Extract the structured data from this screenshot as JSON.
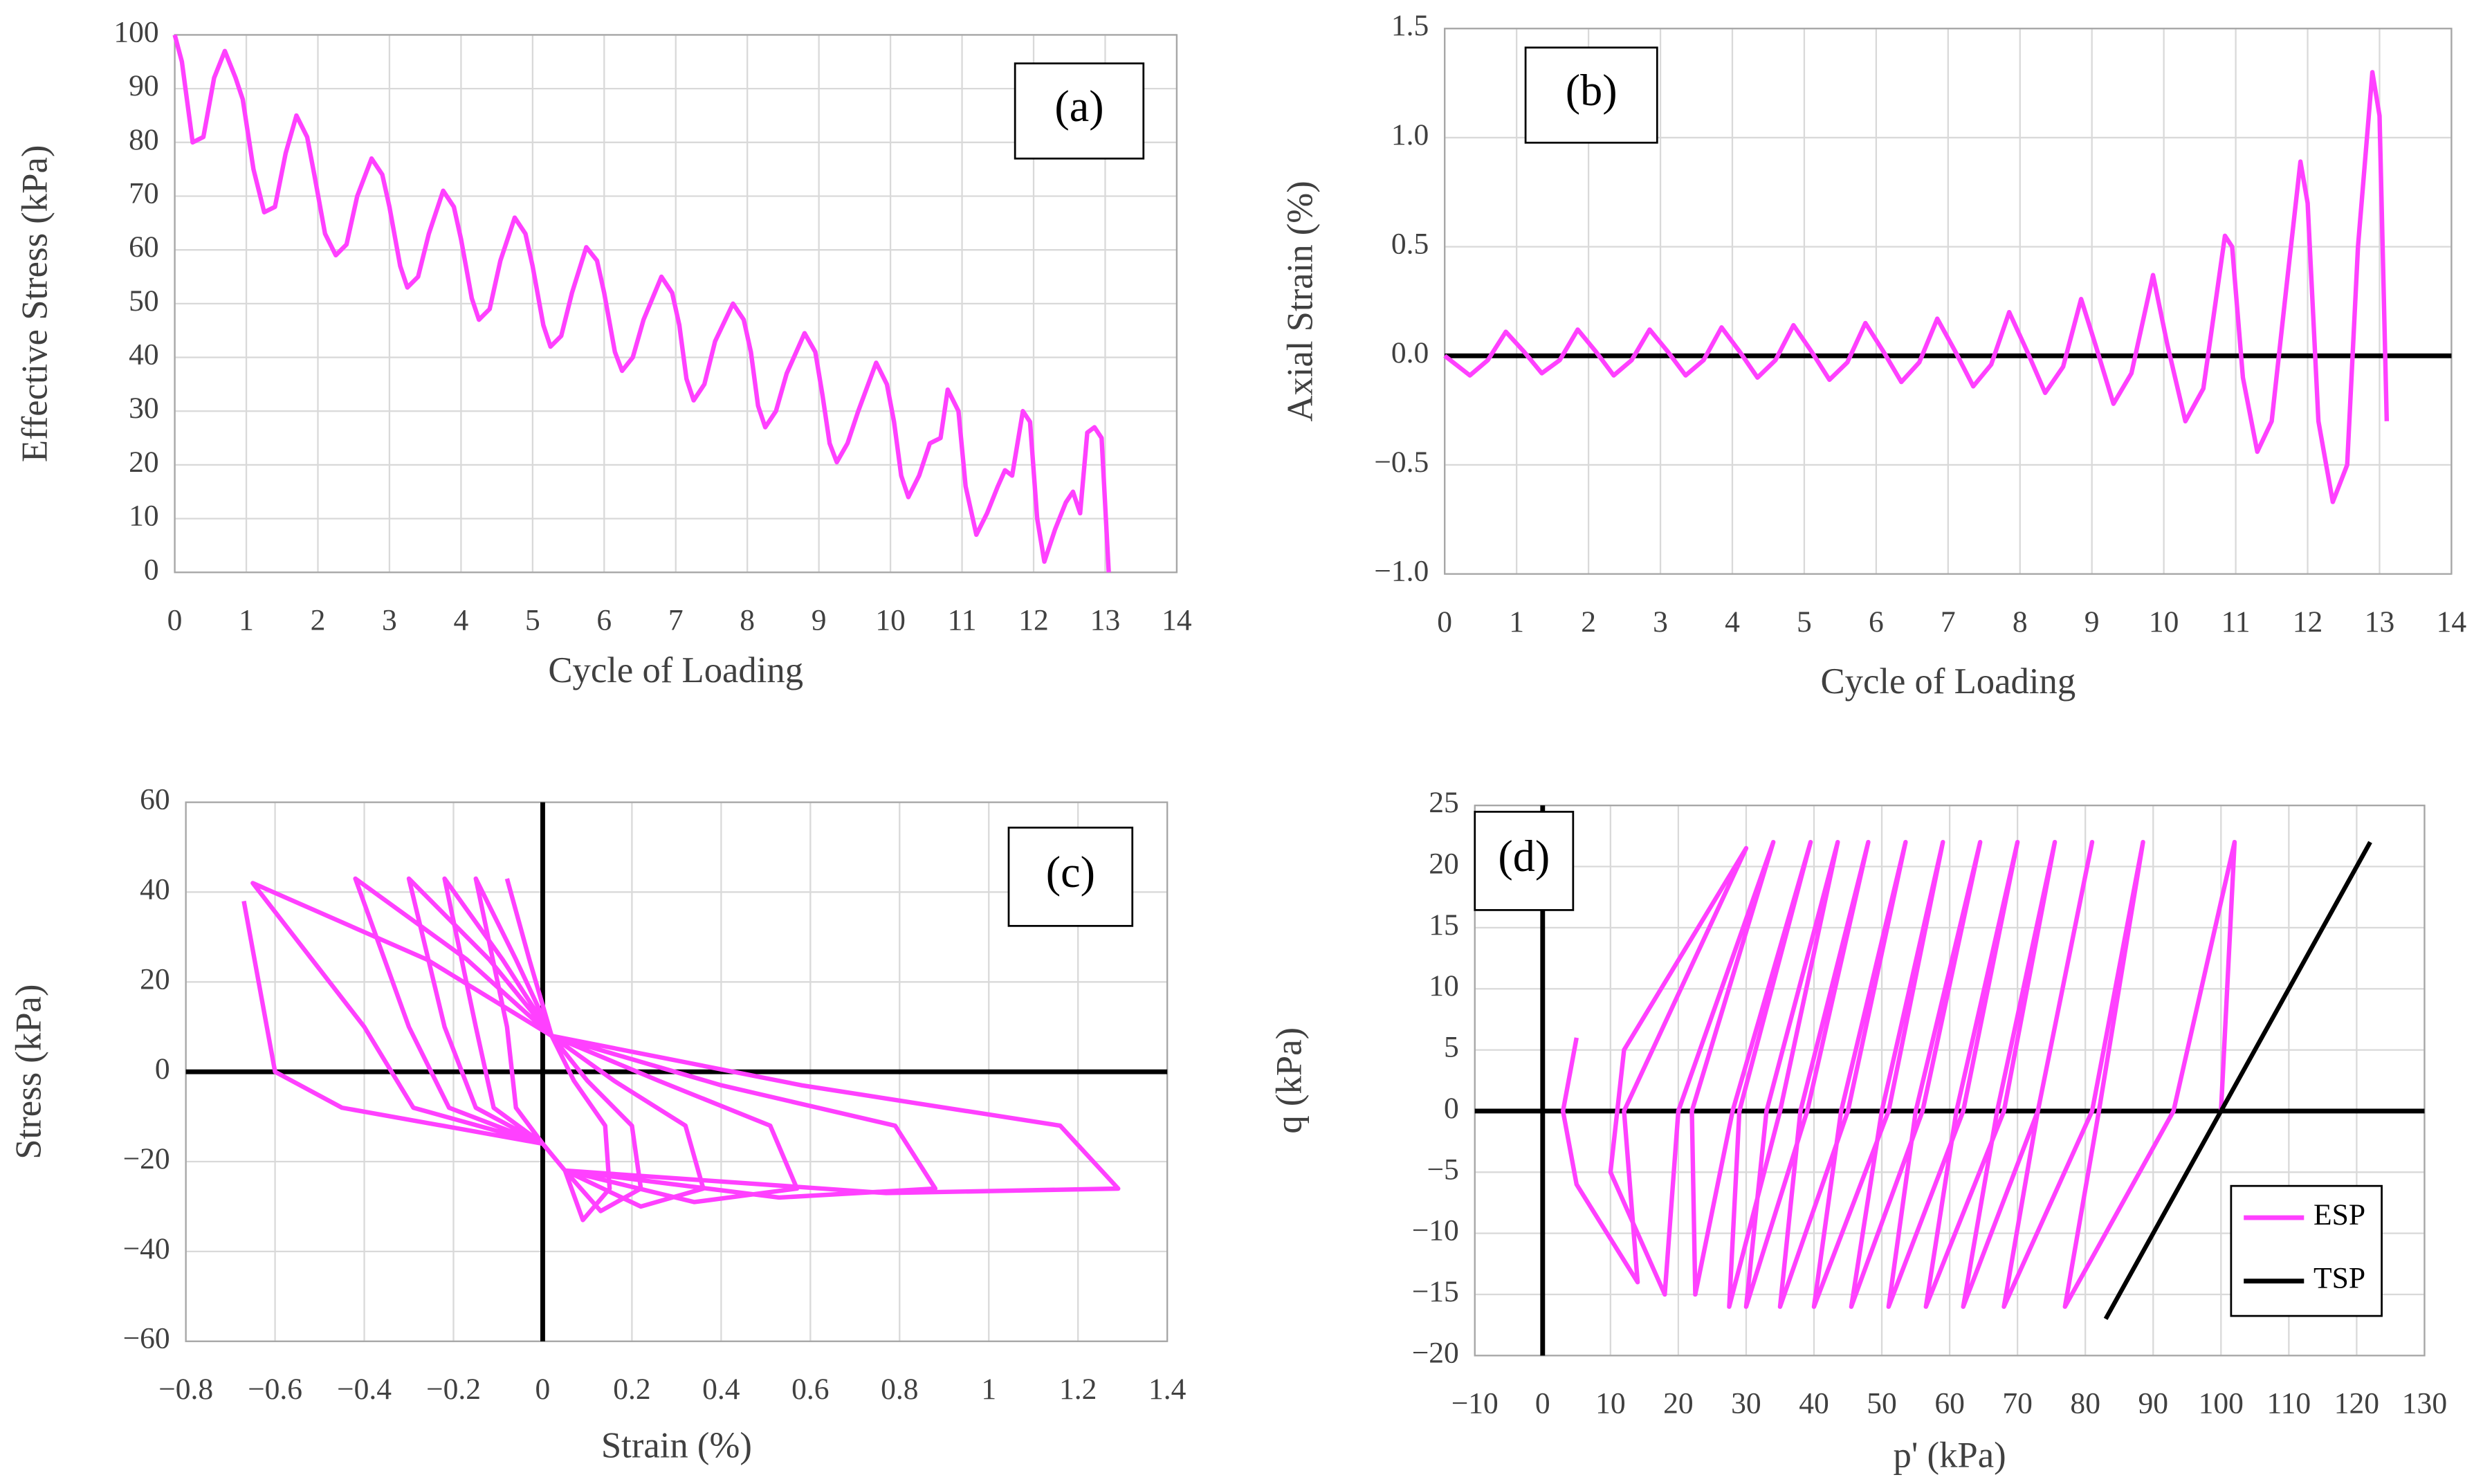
{
  "chart_data": [
    {
      "type": "line",
      "xlabel": "Cycle of Loading",
      "ylabel": "Effective Stress (kPa)",
      "annotation": "(a)",
      "grid": true,
      "zero_lines": false,
      "xlim": [
        0,
        14
      ],
      "xticks": [
        0,
        1,
        2,
        3,
        4,
        5,
        6,
        7,
        8,
        9,
        10,
        11,
        12,
        13,
        14
      ],
      "ylim": [
        0,
        100
      ],
      "yticks": [
        0,
        10,
        20,
        30,
        40,
        50,
        60,
        70,
        80,
        90,
        100
      ],
      "series": [
        {
          "color": "#ff40ff",
          "x": [
            0,
            0.1,
            0.25,
            0.4,
            0.55,
            0.7,
            0.85,
            0.95,
            1.1,
            1.25,
            1.4,
            1.55,
            1.7,
            1.85,
            1.95,
            2.1,
            2.25,
            2.4,
            2.55,
            2.75,
            2.9,
            3.0,
            3.15,
            3.25,
            3.4,
            3.55,
            3.75,
            3.9,
            4.0,
            4.15,
            4.25,
            4.4,
            4.55,
            4.75,
            4.9,
            5.0,
            5.15,
            5.25,
            5.4,
            5.55,
            5.75,
            5.9,
            6.0,
            6.15,
            6.25,
            6.4,
            6.55,
            6.8,
            6.95,
            7.05,
            7.15,
            7.25,
            7.4,
            7.55,
            7.8,
            7.95,
            8.05,
            8.15,
            8.25,
            8.4,
            8.55,
            8.8,
            8.95,
            9.05,
            9.15,
            9.25,
            9.4,
            9.55,
            9.8,
            9.95,
            10.05,
            10.15,
            10.25,
            10.4,
            10.55,
            10.7,
            10.8,
            10.95,
            11.05,
            11.2,
            11.35,
            11.5,
            11.6,
            11.7,
            11.85,
            11.95,
            12.05,
            12.15,
            12.3,
            12.45,
            12.55,
            12.65,
            12.75,
            12.85,
            12.95,
            13.05
          ],
          "values": [
            100,
            95,
            80,
            81,
            92,
            97,
            92,
            88,
            75,
            67,
            68,
            78,
            85,
            81,
            74,
            63,
            59,
            61,
            70,
            77,
            74,
            68,
            57,
            53,
            55,
            63,
            71,
            68,
            62,
            51,
            47,
            49,
            58,
            66,
            63,
            57,
            46,
            42,
            44,
            52,
            60.5,
            58,
            52,
            41,
            37.5,
            40,
            47,
            55,
            52,
            46,
            36,
            32,
            35,
            43,
            50,
            47,
            41,
            31,
            27,
            30,
            37,
            44.5,
            41,
            33,
            24,
            20.5,
            24,
            30,
            39,
            35,
            28,
            18,
            14,
            18,
            24,
            25,
            34,
            30,
            16,
            7,
            11,
            16,
            19,
            18,
            30,
            28,
            10,
            2,
            8,
            13,
            15,
            11,
            26,
            27,
            25,
            0
          ]
        }
      ]
    },
    {
      "type": "line",
      "xlabel": "Cycle of Loading",
      "ylabel": "Axial Strain (%)",
      "annotation": "(b)",
      "grid": true,
      "zero_lines": true,
      "xlim": [
        0,
        14
      ],
      "xticks": [
        0,
        1,
        2,
        3,
        4,
        5,
        6,
        7,
        8,
        9,
        10,
        11,
        12,
        13,
        14
      ],
      "ylim": [
        -1.0,
        1.5
      ],
      "yticks": [
        {
          "value": -1.0,
          "label": "−1.0"
        },
        {
          "value": -0.5,
          "label": "−0.5"
        },
        {
          "value": 0,
          "label": "0.0"
        },
        0.5,
        {
          "value": 1.0,
          "label": "1.0"
        },
        1.5
      ],
      "series": [
        {
          "color": "#ff40ff",
          "x": [
            0,
            0.35,
            0.6,
            0.85,
            1.1,
            1.35,
            1.6,
            1.85,
            2.1,
            2.35,
            2.6,
            2.85,
            3.1,
            3.35,
            3.6,
            3.85,
            4.1,
            4.35,
            4.6,
            4.85,
            5.1,
            5.35,
            5.6,
            5.85,
            6.1,
            6.35,
            6.6,
            6.85,
            7.1,
            7.35,
            7.6,
            7.85,
            8.1,
            8.35,
            8.6,
            8.85,
            9.05,
            9.3,
            9.55,
            9.85,
            10.05,
            10.3,
            10.55,
            10.85,
            10.95,
            11.1,
            11.3,
            11.5,
            11.7,
            11.9,
            12.0,
            12.15,
            12.35,
            12.55,
            12.7,
            12.9,
            13.0,
            13.1
          ],
          "values": [
            0,
            -0.09,
            -0.02,
            0.11,
            0.02,
            -0.08,
            -0.02,
            0.12,
            0.02,
            -0.09,
            -0.02,
            0.12,
            0.02,
            -0.09,
            -0.02,
            0.13,
            0.02,
            -0.1,
            -0.02,
            0.14,
            0.02,
            -0.11,
            -0.03,
            0.15,
            0.02,
            -0.12,
            -0.03,
            0.17,
            0.02,
            -0.14,
            -0.04,
            0.2,
            0.02,
            -0.17,
            -0.05,
            0.26,
            0.05,
            -0.22,
            -0.08,
            0.37,
            0.05,
            -0.3,
            -0.15,
            0.55,
            0.5,
            -0.1,
            -0.44,
            -0.3,
            0.3,
            0.89,
            0.7,
            -0.3,
            -0.67,
            -0.5,
            0.5,
            1.3,
            1.1,
            -0.3
          ]
        }
      ]
    },
    {
      "type": "line",
      "xlabel": "Strain (%)",
      "ylabel": "Stress (kPa)",
      "annotation": "(c)",
      "grid": true,
      "zero_lines": true,
      "xlim": [
        -0.8,
        1.4
      ],
      "xticks": [
        {
          "value": -0.8,
          "label": "−0.8"
        },
        {
          "value": -0.6,
          "label": "−0.6"
        },
        {
          "value": -0.4,
          "label": "−0.4"
        },
        {
          "value": -0.2,
          "label": "−0.2"
        },
        0,
        0.2,
        0.4,
        0.6,
        0.8,
        1,
        1.2,
        1.4
      ],
      "ylim": [
        -60,
        60
      ],
      "yticks": [
        {
          "value": -60,
          "label": "−60"
        },
        {
          "value": -40,
          "label": "−40"
        },
        {
          "value": -20,
          "label": "−20"
        },
        0,
        20,
        40,
        60
      ],
      "series": [
        {
          "color": "#ff40ff",
          "x": [
            -0.08,
            -0.03,
            0.02,
            0.07,
            0.14,
            0.15,
            0.09,
            0.05,
            0,
            -0.06,
            -0.08,
            -0.15,
            -0.06,
            0.02,
            0.1,
            0.2,
            0.22,
            0.13,
            0.05,
            0,
            -0.11,
            -0.15,
            -0.22,
            -0.09,
            0.02,
            0.16,
            0.32,
            0.36,
            0.22,
            0.05,
            0,
            -0.15,
            -0.22,
            -0.3,
            -0.12,
            0.02,
            0.26,
            0.51,
            0.57,
            0.34,
            0.05,
            0,
            -0.21,
            -0.3,
            -0.42,
            -0.17,
            0.02,
            0.4,
            0.79,
            0.88,
            0.53,
            0.05,
            0,
            -0.29,
            -0.4,
            -0.65,
            -0.26,
            0.02,
            0.58,
            1.16,
            1.29,
            0.77,
            0.05,
            0,
            -0.45,
            -0.6,
            -0.67
          ],
          "values": [
            43,
            25,
            8,
            -2,
            -12,
            -26,
            -33,
            -22,
            -16,
            -8,
            10,
            43,
            25,
            8,
            -2,
            -12,
            -26,
            -31,
            -22,
            -16,
            -8,
            10,
            43,
            25,
            8,
            -2,
            -12,
            -26,
            -30,
            -22,
            -16,
            -8,
            10,
            43,
            25,
            8,
            -2,
            -12,
            -26,
            -29,
            -22,
            -16,
            -8,
            10,
            43,
            25,
            8,
            -3,
            -12,
            -26,
            -28,
            -22,
            -16,
            -8,
            10,
            42,
            25,
            8,
            -3,
            -12,
            -26,
            -27,
            -22,
            -16,
            -8,
            0,
            38
          ]
        }
      ]
    },
    {
      "type": "line",
      "xlabel": "p' (kPa)",
      "ylabel": "q (kPa)",
      "annotation": "(d)",
      "grid": true,
      "zero_lines": true,
      "legend": "lower right",
      "xlim": [
        -10,
        130
      ],
      "xticks": [
        {
          "value": -10,
          "label": "−10"
        },
        0,
        10,
        20,
        30,
        40,
        50,
        60,
        70,
        80,
        90,
        100,
        110,
        120,
        130
      ],
      "ylim": [
        -20,
        25
      ],
      "yticks": [
        {
          "value": -20,
          "label": "−20"
        },
        {
          "value": -15,
          "label": "−15"
        },
        {
          "value": -10,
          "label": "−10"
        },
        {
          "value": -5,
          "label": "−5"
        },
        0,
        5,
        10,
        15,
        20,
        25
      ],
      "series": [
        {
          "name": "ESP",
          "color": "#ff40ff",
          "x": [
            100,
            102,
            93,
            77,
            82,
            88.5,
            81,
            68,
            73,
            81,
            73,
            62,
            67,
            75.5,
            68,
            56.5,
            61,
            70,
            62,
            51,
            55,
            64.5,
            56,
            45.5,
            50,
            59,
            51,
            40,
            44,
            53.5,
            45,
            35,
            38,
            48,
            39,
            30,
            33,
            43.5,
            35,
            27.5,
            29,
            39.5,
            28,
            22.5,
            22,
            34,
            20,
            18,
            10,
            12,
            30,
            12,
            14,
            5,
            3,
            5
          ],
          "values": [
            0,
            22,
            0,
            -16,
            0,
            22,
            0,
            -16,
            0,
            22,
            0,
            -16,
            0,
            22,
            0,
            -16,
            0,
            22,
            0,
            -16,
            0,
            22,
            0,
            -16,
            0,
            22,
            0,
            -16,
            0,
            22,
            0,
            -16,
            0,
            22,
            0,
            -16,
            0,
            22,
            0,
            -16,
            0,
            22,
            0,
            -15,
            0,
            22,
            0,
            -15,
            -5,
            5,
            21.5,
            0,
            -14,
            -6,
            0,
            6
          ]
        },
        {
          "name": "TSP",
          "color": "#000000",
          "x": [
            83,
            122
          ],
          "values": [
            -17,
            22
          ]
        }
      ]
    }
  ]
}
